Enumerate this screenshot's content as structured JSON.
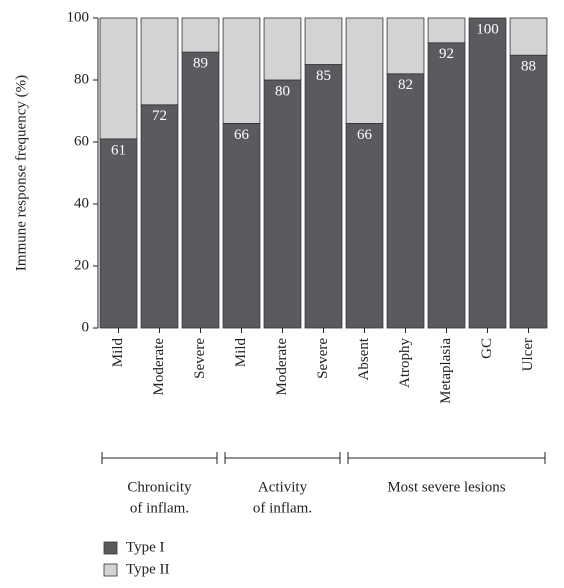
{
  "chart_data": {
    "type": "stacked_bar",
    "y_label": "Immune response frequency (%)",
    "categories": [
      "Mild",
      "Moderate",
      "Severe",
      "Mild",
      "Moderate",
      "Severe",
      "Absent",
      "Atrophy",
      "Metaplasia",
      "GC",
      "Ulcer"
    ],
    "series": [
      {
        "name": "Type I",
        "color": "#5b5b5f",
        "values": [
          61,
          72,
          89,
          66,
          80,
          85,
          66,
          82,
          92,
          100,
          88
        ],
        "show_labels": true
      },
      {
        "name": "Type II",
        "color": "#d1d3d5",
        "values": [
          39,
          28,
          11,
          34,
          20,
          15,
          34,
          18,
          8,
          0,
          12
        ],
        "show_labels": false
      }
    ],
    "groups": [
      {
        "label_lines": [
          "Chronicity",
          "of inflam."
        ],
        "count": 3
      },
      {
        "label_lines": [
          "Activity",
          "of inflam."
        ],
        "count": 3
      },
      {
        "label_lines": [
          "Most severe lesions"
        ],
        "count": 5
      }
    ],
    "ylim": [
      0,
      100
    ],
    "yticks": [
      0,
      20,
      40,
      60,
      80,
      100
    ],
    "legend": "bottom-left"
  }
}
